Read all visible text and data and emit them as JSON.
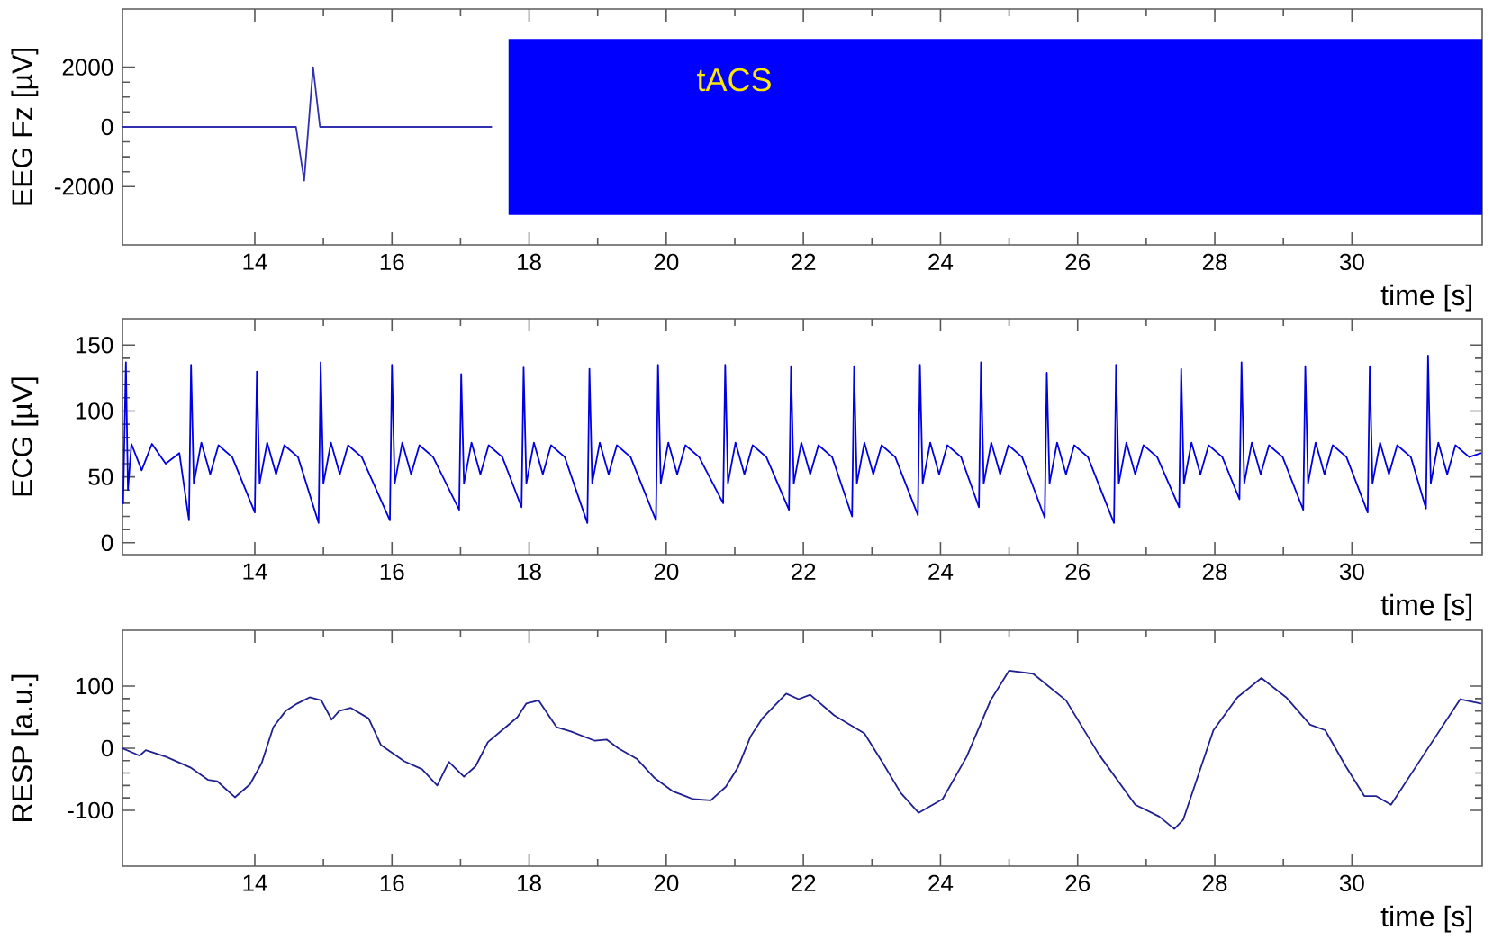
{
  "chart_data": [
    {
      "type": "line",
      "ylabel": "EEG Fz  [µV]",
      "xlabel": "time  [s]",
      "xlim": [
        12.07,
        31.9
      ],
      "xticks": [
        14,
        16,
        18,
        20,
        22,
        24,
        26,
        28,
        30
      ],
      "ylim": [
        -3950,
        3950
      ],
      "yticks": [
        -2000,
        0,
        2000
      ],
      "annotations": [
        "tACS"
      ],
      "series": [
        {
          "color": "#3030b0",
          "x": [
            12.07,
            14.6,
            14.72,
            14.85,
            14.95,
            17.45
          ],
          "values": [
            0,
            0,
            -1800,
            2000,
            0,
            0
          ]
        },
        {
          "color": "#0000ff",
          "x": [
            17.7,
            31.9
          ],
          "values": [
            null,
            null
          ],
          "lower": [
            -2950,
            -2950
          ],
          "upper": [
            2950,
            2950
          ]
        }
      ]
    },
    {
      "type": "line",
      "ylabel": "ECG  [µV]",
      "xlabel": "time  [s]",
      "xlim": [
        12.07,
        31.9
      ],
      "xticks": [
        14,
        16,
        18,
        20,
        22,
        24,
        26,
        28,
        30
      ],
      "ylim": [
        -9,
        170
      ],
      "yticks": [
        0,
        50,
        100,
        150
      ],
      "series": [
        {
          "color": "#0000e0",
          "x": [
            12.08,
            12.12,
            12.15,
            12.2,
            12.35,
            12.5,
            12.7,
            12.9,
            13.04,
            13.07,
            13.11,
            13.22,
            13.35,
            13.47,
            13.67,
            14.0,
            14.03,
            14.07,
            14.18,
            14.31,
            14.43,
            14.63,
            14.93,
            14.96,
            15.0,
            15.11,
            15.24,
            15.36,
            15.56,
            15.97,
            16.0,
            16.04,
            16.15,
            16.28,
            16.4,
            16.6,
            16.98,
            17.01,
            17.05,
            17.16,
            17.29,
            17.41,
            17.61,
            17.89,
            17.92,
            17.96,
            18.07,
            18.2,
            18.32,
            18.52,
            18.85,
            18.88,
            18.92,
            19.03,
            19.16,
            19.28,
            19.48,
            19.85,
            19.88,
            19.92,
            20.03,
            20.16,
            20.28,
            20.48,
            20.83,
            20.86,
            20.9,
            21.01,
            21.14,
            21.26,
            21.46,
            21.79,
            21.82,
            21.86,
            21.97,
            22.1,
            22.22,
            22.42,
            22.71,
            22.74,
            22.78,
            22.89,
            23.02,
            23.14,
            23.34,
            23.67,
            23.7,
            23.74,
            23.85,
            23.98,
            24.1,
            24.3,
            24.56,
            24.59,
            24.63,
            24.74,
            24.87,
            24.99,
            25.19,
            25.52,
            25.55,
            25.59,
            25.7,
            25.83,
            25.95,
            26.15,
            26.53,
            26.56,
            26.6,
            26.71,
            26.84,
            26.96,
            27.16,
            27.48,
            27.51,
            27.55,
            27.66,
            27.79,
            27.91,
            28.11,
            28.36,
            28.39,
            28.43,
            28.54,
            28.67,
            28.79,
            28.99,
            29.29,
            29.32,
            29.36,
            29.47,
            29.6,
            29.72,
            29.92,
            30.23,
            30.26,
            30.3,
            30.41,
            30.54,
            30.66,
            30.86,
            31.08,
            31.11,
            31.15,
            31.26,
            31.39,
            31.51,
            31.71,
            31.88
          ],
          "values": [
            30,
            137,
            40,
            75,
            55,
            75,
            60,
            68,
            17,
            135,
            45,
            76,
            52,
            74,
            65,
            23,
            130,
            45,
            76,
            52,
            74,
            65,
            15,
            137,
            45,
            76,
            52,
            74,
            65,
            17,
            135,
            45,
            76,
            52,
            74,
            65,
            25,
            128,
            45,
            76,
            52,
            74,
            65,
            27,
            133,
            45,
            76,
            52,
            74,
            65,
            15,
            132,
            45,
            76,
            52,
            74,
            65,
            17,
            135,
            45,
            76,
            52,
            74,
            65,
            30,
            135,
            45,
            76,
            52,
            74,
            65,
            25,
            134,
            45,
            76,
            52,
            74,
            65,
            20,
            134,
            45,
            76,
            52,
            74,
            65,
            21,
            135,
            45,
            76,
            52,
            74,
            65,
            27,
            137,
            45,
            76,
            52,
            74,
            65,
            19,
            129,
            45,
            76,
            52,
            74,
            65,
            15,
            135,
            45,
            76,
            52,
            74,
            65,
            27,
            132,
            45,
            76,
            52,
            74,
            65,
            33,
            137,
            45,
            76,
            52,
            74,
            65,
            25,
            134,
            45,
            76,
            52,
            74,
            65,
            23,
            134,
            45,
            76,
            52,
            74,
            65,
            26,
            142,
            45,
            76,
            52,
            74,
            65,
            68
          ]
        }
      ]
    },
    {
      "type": "line",
      "ylabel": "RESP  [a.u.]",
      "xlabel": "time  [s]",
      "xlim": [
        12.07,
        31.9
      ],
      "xticks": [
        14,
        16,
        18,
        20,
        22,
        24,
        26,
        28,
        30
      ],
      "ylim": [
        -190,
        190
      ],
      "yticks": [
        -100,
        0,
        100
      ],
      "series": [
        {
          "color": "#202090",
          "x": [
            12.07,
            12.32,
            12.41,
            12.71,
            13.06,
            13.32,
            13.45,
            13.71,
            13.93,
            14.1,
            14.27,
            14.45,
            14.62,
            14.8,
            14.97,
            15.12,
            15.23,
            15.4,
            15.66,
            15.84,
            16.18,
            16.44,
            16.66,
            16.83,
            17.05,
            17.22,
            17.4,
            17.66,
            17.83,
            17.96,
            18.14,
            18.4,
            18.61,
            18.96,
            19.13,
            19.3,
            19.57,
            19.83,
            20.09,
            20.39,
            20.65,
            20.87,
            21.05,
            21.23,
            21.4,
            21.75,
            21.93,
            22.1,
            22.45,
            22.89,
            23.16,
            23.42,
            23.68,
            24.03,
            24.38,
            24.73,
            25.0,
            25.35,
            25.83,
            26.31,
            26.84,
            27.19,
            27.41,
            27.54,
            27.98,
            28.33,
            28.68,
            29.04,
            29.39,
            29.61,
            29.91,
            30.18,
            30.35,
            30.57,
            31.05,
            31.58,
            31.88
          ],
          "values": [
            0,
            -12,
            -3,
            -14,
            -31,
            -51,
            -53,
            -79,
            -58,
            -24,
            34,
            60,
            72,
            82,
            77,
            46,
            60,
            65,
            48,
            5,
            -21,
            -34,
            -60,
            -22,
            -46,
            -29,
            10,
            34,
            50,
            72,
            77,
            34,
            27,
            12,
            14,
            0,
            -17,
            -48,
            -69,
            -82,
            -84,
            -62,
            -30,
            19,
            48,
            88,
            79,
            86,
            53,
            24,
            -24,
            -72,
            -104,
            -82,
            -14,
            77,
            125,
            120,
            77,
            -10,
            -91,
            -110,
            -130,
            -115,
            29,
            82,
            113,
            82,
            38,
            29,
            -29,
            -77,
            -77,
            -91,
            -10,
            79,
            72
          ]
        }
      ]
    }
  ]
}
